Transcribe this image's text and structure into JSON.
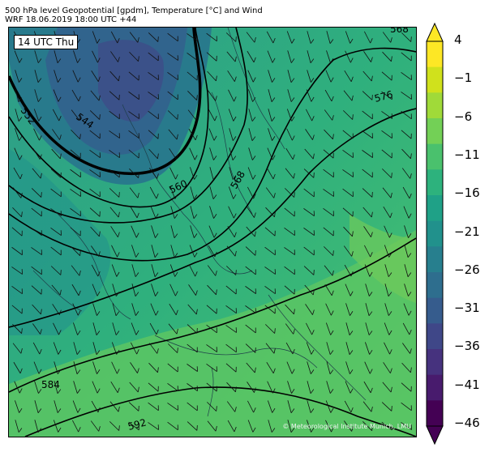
{
  "header": {
    "line1": "500 hPa level Geopotential [gpdm], Temperature [°C] and Wind",
    "line2": "WRF 18.06.2019 18:00 UTC +44"
  },
  "map": {
    "time_label": "14 UTC Thu",
    "credit": "© Meteorological Institute Munich, LMU",
    "contour_labels": [
      "552",
      "544",
      "560",
      "568",
      "576",
      "584",
      "592",
      "568"
    ]
  },
  "colorbar": {
    "ticks": [
      "4",
      "−1",
      "−6",
      "−11",
      "−16",
      "−21",
      "−26",
      "−31",
      "−36",
      "−41",
      "−46"
    ],
    "colors": [
      "#fde725",
      "#d0e11c",
      "#a0da39",
      "#73d056",
      "#4ac16d",
      "#2db27d",
      "#1fa187",
      "#21918c",
      "#277f8e",
      "#2e6e8e",
      "#365c8d",
      "#3f4788",
      "#46327e",
      "#481b6d",
      "#440154"
    ]
  }
}
